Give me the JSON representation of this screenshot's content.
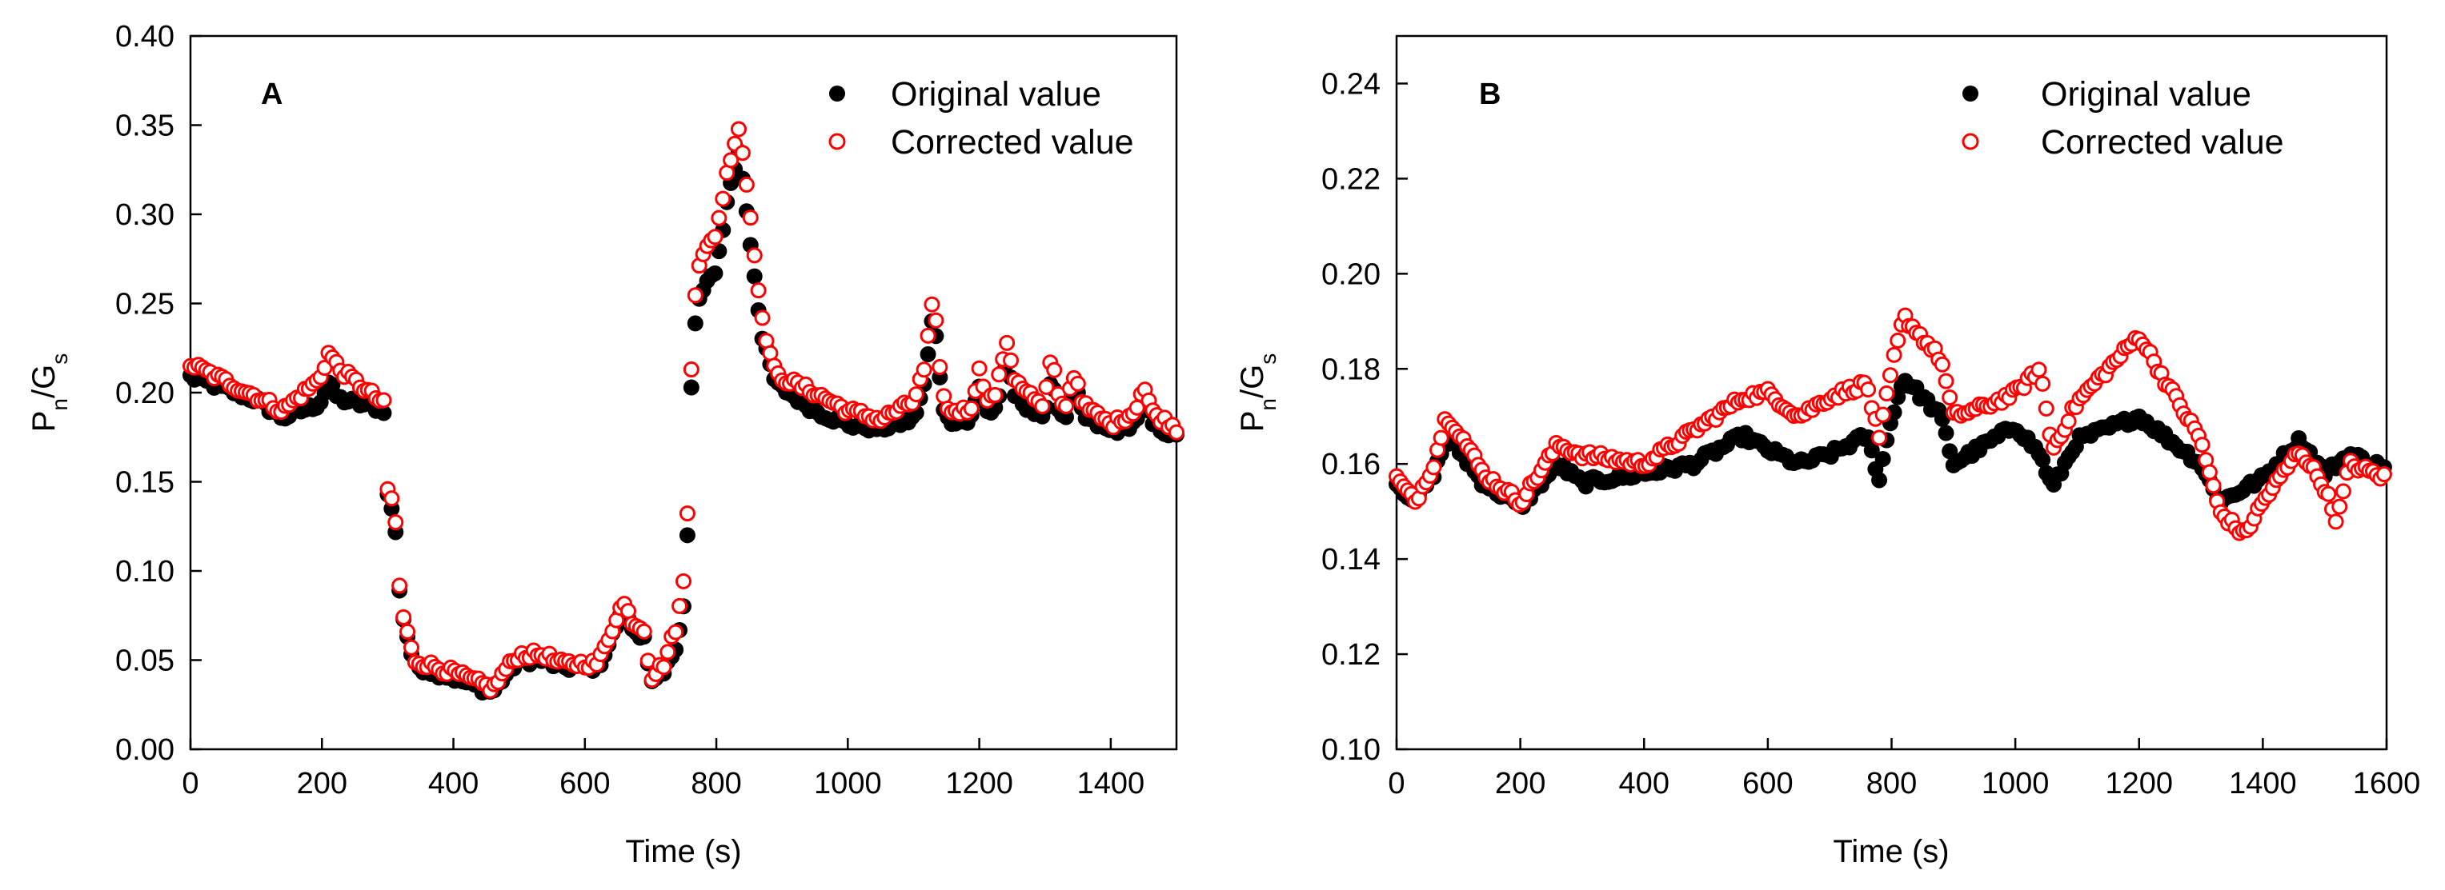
{
  "chart_data": [
    {
      "panel": "A",
      "type": "scatter",
      "xlabel": "Time (s)",
      "ylabel": {
        "main": "P",
        "sub1": "n",
        "mid": "/G",
        "sub2": "s"
      },
      "xlim": [
        0,
        1500
      ],
      "ylim": [
        0,
        0.4
      ],
      "xticks": [
        0,
        200,
        400,
        600,
        800,
        1000,
        1200,
        1400
      ],
      "yticks": [
        0.0,
        0.05,
        0.1,
        0.15,
        0.2,
        0.25,
        0.3,
        0.35,
        0.4
      ],
      "xtick_labels": [
        "0",
        "200",
        "400",
        "600",
        "800",
        "1000",
        "1200",
        "1400"
      ],
      "ytick_labels": [
        "0.00",
        "0.05",
        "0.10",
        "0.15",
        "0.20",
        "0.25",
        "0.30",
        "0.35",
        "0.40"
      ],
      "legend_position": "top-right",
      "series": [
        {
          "name": "Original value",
          "marker": "filled-circle",
          "color": "#000000",
          "profile": [
            [
              0,
              0.209
            ],
            [
              100,
              0.196
            ],
            [
              140,
              0.186
            ],
            [
              220,
              0.197
            ],
            [
              290,
              0.191
            ],
            [
              298,
              0.19
            ],
            [
              300,
              0.142
            ],
            [
              310,
              0.131
            ],
            [
              320,
              0.08
            ],
            [
              340,
              0.047
            ],
            [
              400,
              0.04
            ],
            [
              460,
              0.032
            ],
            [
              480,
              0.042
            ],
            [
              500,
              0.05
            ],
            [
              540,
              0.05
            ],
            [
              560,
              0.046
            ],
            [
              620,
              0.046
            ],
            [
              650,
              0.07
            ],
            [
              690,
              0.064
            ],
            [
              700,
              0.036
            ],
            [
              720,
              0.042
            ],
            [
              740,
              0.06
            ],
            [
              755,
              0.09
            ],
            [
              758,
              0.178
            ],
            [
              770,
              0.25
            ],
            [
              800,
              0.27
            ],
            [
              820,
              0.315
            ],
            [
              835,
              0.336
            ],
            [
              850,
              0.29
            ],
            [
              870,
              0.23
            ],
            [
              890,
              0.205
            ],
            [
              950,
              0.19
            ],
            [
              1000,
              0.182
            ],
            [
              1050,
              0.18
            ],
            [
              1100,
              0.185
            ],
            [
              1130,
              0.22
            ],
            [
              1150,
              0.185
            ],
            [
              1200,
              0.183
            ],
            [
              1250,
              0.2
            ],
            [
              1300,
              0.183
            ],
            [
              1350,
              0.188
            ],
            [
              1400,
              0.178
            ],
            [
              1450,
              0.185
            ],
            [
              1500,
              0.175
            ]
          ],
          "spikes": [
            [
              210,
              0.01
            ],
            [
              660,
              0.008
            ],
            [
              1130,
              0.025
            ],
            [
              1200,
              0.02
            ],
            [
              1240,
              0.02
            ],
            [
              1310,
              0.025
            ],
            [
              1345,
              0.015
            ],
            [
              1450,
              0.01
            ]
          ]
        },
        {
          "name": "Corrected value",
          "marker": "open-circle",
          "color": "#ff0000",
          "profile": [
            [
              0,
              0.216
            ],
            [
              100,
              0.198
            ],
            [
              140,
              0.19
            ],
            [
              220,
              0.215
            ],
            [
              290,
              0.195
            ],
            [
              298,
              0.192
            ],
            [
              300,
              0.145
            ],
            [
              310,
              0.138
            ],
            [
              320,
              0.08
            ],
            [
              340,
              0.05
            ],
            [
              400,
              0.043
            ],
            [
              460,
              0.034
            ],
            [
              480,
              0.045
            ],
            [
              500,
              0.053
            ],
            [
              540,
              0.053
            ],
            [
              560,
              0.048
            ],
            [
              620,
              0.048
            ],
            [
              650,
              0.075
            ],
            [
              690,
              0.068
            ],
            [
              700,
              0.04
            ],
            [
              720,
              0.048
            ],
            [
              740,
              0.07
            ],
            [
              755,
              0.105
            ],
            [
              758,
              0.188
            ],
            [
              770,
              0.27
            ],
            [
              800,
              0.29
            ],
            [
              820,
              0.33
            ],
            [
              835,
              0.35
            ],
            [
              850,
              0.305
            ],
            [
              870,
              0.24
            ],
            [
              890,
              0.21
            ],
            [
              950,
              0.2
            ],
            [
              1000,
              0.19
            ],
            [
              1050,
              0.185
            ],
            [
              1100,
              0.195
            ],
            [
              1130,
              0.228
            ],
            [
              1150,
              0.19
            ],
            [
              1200,
              0.19
            ],
            [
              1250,
              0.21
            ],
            [
              1300,
              0.19
            ],
            [
              1350,
              0.195
            ],
            [
              1400,
              0.182
            ],
            [
              1450,
              0.192
            ],
            [
              1500,
              0.18
            ]
          ],
          "spikes": [
            [
              210,
              0.01
            ],
            [
              660,
              0.008
            ],
            [
              1130,
              0.025
            ],
            [
              1200,
              0.022
            ],
            [
              1240,
              0.022
            ],
            [
              1310,
              0.028
            ],
            [
              1345,
              0.016
            ],
            [
              1450,
              0.012
            ]
          ]
        }
      ]
    },
    {
      "panel": "B",
      "type": "scatter",
      "xlabel": "Time (s)",
      "ylabel": {
        "main": "P",
        "sub1": "n",
        "mid": "/G",
        "sub2": "s"
      },
      "xlim": [
        0,
        1600
      ],
      "ylim": [
        0.1,
        0.25
      ],
      "xticks": [
        0,
        200,
        400,
        600,
        800,
        1000,
        1200,
        1400,
        1600
      ],
      "yticks": [
        0.1,
        0.12,
        0.14,
        0.16,
        0.18,
        0.2,
        0.22,
        0.24
      ],
      "xtick_labels": [
        "0",
        "200",
        "400",
        "600",
        "800",
        "1000",
        "1200",
        "1400",
        "1600"
      ],
      "ytick_labels": [
        "0.10",
        "0.12",
        "0.14",
        "0.16",
        "0.18",
        "0.20",
        "0.22",
        "0.24"
      ],
      "legend_position": "top-right",
      "series": [
        {
          "name": "Original value",
          "marker": "filled-circle",
          "color": "#000000",
          "profile": [
            [
              0,
              0.156
            ],
            [
              30,
              0.152
            ],
            [
              60,
              0.158
            ],
            [
              80,
              0.165
            ],
            [
              100,
              0.163
            ],
            [
              140,
              0.156
            ],
            [
              200,
              0.151
            ],
            [
              260,
              0.16
            ],
            [
              300,
              0.156
            ],
            [
              400,
              0.158
            ],
            [
              480,
              0.16
            ],
            [
              560,
              0.166
            ],
            [
              600,
              0.163
            ],
            [
              650,
              0.16
            ],
            [
              700,
              0.162
            ],
            [
              760,
              0.166
            ],
            [
              780,
              0.157
            ],
            [
              800,
              0.17
            ],
            [
              820,
              0.178
            ],
            [
              880,
              0.17
            ],
            [
              900,
              0.16
            ],
            [
              950,
              0.164
            ],
            [
              1000,
              0.168
            ],
            [
              1040,
              0.162
            ],
            [
              1060,
              0.155
            ],
            [
              1100,
              0.165
            ],
            [
              1200,
              0.17
            ],
            [
              1240,
              0.166
            ],
            [
              1300,
              0.16
            ],
            [
              1330,
              0.152
            ],
            [
              1400,
              0.157
            ],
            [
              1460,
              0.165
            ],
            [
              1500,
              0.158
            ],
            [
              1540,
              0.162
            ],
            [
              1600,
              0.159
            ]
          ],
          "spikes": []
        },
        {
          "name": "Corrected value",
          "marker": "open-circle",
          "color": "#ff0000",
          "profile": [
            [
              0,
              0.157
            ],
            [
              30,
              0.152
            ],
            [
              60,
              0.16
            ],
            [
              80,
              0.17
            ],
            [
              100,
              0.167
            ],
            [
              140,
              0.158
            ],
            [
              200,
              0.152
            ],
            [
              260,
              0.164
            ],
            [
              300,
              0.162
            ],
            [
              400,
              0.16
            ],
            [
              480,
              0.167
            ],
            [
              560,
              0.174
            ],
            [
              600,
              0.175
            ],
            [
              650,
              0.17
            ],
            [
              700,
              0.174
            ],
            [
              760,
              0.177
            ],
            [
              780,
              0.165
            ],
            [
              800,
              0.18
            ],
            [
              820,
              0.191
            ],
            [
              880,
              0.182
            ],
            [
              900,
              0.17
            ],
            [
              950,
              0.172
            ],
            [
              1000,
              0.175
            ],
            [
              1040,
              0.18
            ],
            [
              1060,
              0.163
            ],
            [
              1100,
              0.173
            ],
            [
              1200,
              0.187
            ],
            [
              1240,
              0.178
            ],
            [
              1300,
              0.165
            ],
            [
              1330,
              0.15
            ],
            [
              1370,
              0.145
            ],
            [
              1400,
              0.152
            ],
            [
              1460,
              0.163
            ],
            [
              1500,
              0.155
            ],
            [
              1520,
              0.148
            ],
            [
              1540,
              0.16
            ],
            [
              1600,
              0.157
            ]
          ],
          "spikes": []
        }
      ]
    }
  ]
}
